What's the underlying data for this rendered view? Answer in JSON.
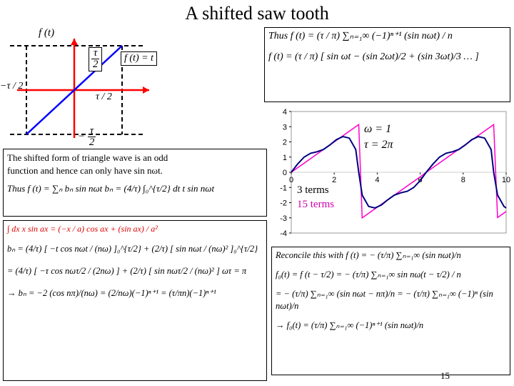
{
  "title": "A shifted saw tooth",
  "sawtooth": {
    "label_ft": "f (t)",
    "label_tau2_top": "τ / 2",
    "label_mtau2": "−τ / 2",
    "label_tau2_right": "τ / 2",
    "label_mtau2_bot": "− τ / 2",
    "label_ft_eq_t": "f (t) = t",
    "axis_color": "#ff0000",
    "line_color": "#0000ff",
    "dash_color": "#000000"
  },
  "top_right_box": {
    "line1": "Thus  f (t) = (τ / π) ∑ₙ₌₁∞ (−1)ⁿ⁺¹ (sin nωt) / n",
    "line2": "f (t) = (τ / π) [ sin ωt − (sin 2ωt)/2 + (sin 3ωt)/3 … ]"
  },
  "chart": {
    "type": "line",
    "xlim": [
      0,
      10
    ],
    "ylim": [
      -4,
      4
    ],
    "xticks": [
      0,
      2,
      4,
      6,
      8,
      10
    ],
    "yticks": [
      -4,
      -3,
      -2,
      -1,
      0,
      1,
      2,
      3,
      4
    ],
    "series": [
      {
        "name": "15 terms",
        "color": "#ff00cc",
        "width": 1.5,
        "xs": [
          0,
          0.2,
          0.4,
          0.6,
          0.8,
          1.0,
          1.2,
          1.4,
          1.6,
          1.8,
          2.0,
          2.2,
          2.4,
          2.6,
          2.8,
          3.0,
          3.14,
          3.3,
          3.5,
          3.7,
          3.9,
          4.1,
          4.3,
          4.5,
          4.7,
          4.9,
          5.1,
          5.3,
          5.5,
          5.7,
          5.9,
          6.1,
          6.28,
          6.5,
          6.7,
          6.9,
          7.1,
          7.3,
          7.5,
          7.7,
          7.9,
          8.1,
          8.3,
          8.5,
          8.7,
          8.9,
          9.1,
          9.3,
          9.42,
          9.6,
          9.8,
          10.0
        ],
        "ys": [
          0,
          0.2,
          0.4,
          0.6,
          0.8,
          1.0,
          1.2,
          1.4,
          1.6,
          1.8,
          2.0,
          2.2,
          2.4,
          2.6,
          2.8,
          3.0,
          3.14,
          -3.0,
          -2.8,
          -2.6,
          -2.4,
          -2.2,
          -2.0,
          -1.8,
          -1.6,
          -1.4,
          -1.2,
          -1.0,
          -0.8,
          -0.6,
          -0.4,
          -0.2,
          0,
          0.22,
          0.42,
          0.62,
          0.82,
          1.02,
          1.22,
          1.42,
          1.62,
          1.82,
          2.02,
          2.22,
          2.42,
          2.62,
          2.82,
          3.02,
          3.14,
          -2.98,
          -2.78,
          -2.58
        ]
      },
      {
        "name": "3 terms",
        "color": "#000080",
        "width": 2,
        "xs": [
          0,
          0.3,
          0.6,
          0.9,
          1.2,
          1.5,
          1.8,
          2.1,
          2.4,
          2.7,
          3.0,
          3.14,
          3.3,
          3.6,
          3.9,
          4.2,
          4.5,
          4.8,
          5.1,
          5.4,
          5.7,
          6.0,
          6.28,
          6.6,
          6.9,
          7.2,
          7.5,
          7.8,
          8.1,
          8.4,
          8.7,
          9.0,
          9.3,
          9.42,
          9.6,
          9.9,
          10.0
        ],
        "ys": [
          0,
          0.55,
          1.0,
          1.25,
          1.35,
          1.5,
          1.8,
          2.15,
          2.35,
          2.25,
          1.5,
          0,
          -1.5,
          -2.25,
          -2.35,
          -2.15,
          -1.8,
          -1.5,
          -1.35,
          -1.25,
          -1.0,
          -0.55,
          0,
          0.55,
          1.0,
          1.25,
          1.35,
          1.5,
          1.8,
          2.15,
          2.35,
          2.25,
          1.5,
          0,
          -1.5,
          -2.25,
          -2.35
        ]
      }
    ],
    "omega_label": "ω = 1",
    "tau_label": "τ = 2π",
    "legend_3": "3 terms",
    "legend_15": "15 terms",
    "tick_fontsize": 11
  },
  "mid_left_box": {
    "line1": "The shifted form of triangle wave is an odd",
    "line2": "function and hence can only have sin nωt.",
    "line3": "Thus  f (t) = ∑ₙ bₙ sin nωt     bₙ = (4/τ) ∫₀^{τ/2} dt  t sin nωt"
  },
  "bottom_left_box": {
    "line1": "∫ dx x sin ax = (−x / a) cos ax + (sin ax) / a²",
    "line2": "bₙ = (4/τ) [ −t cos nωt / (nω) ]₀^{τ/2} + (2/τ) [ sin nωt / (nω)² ]₀^{τ/2}",
    "line3": "= (4/τ) [ −τ cos nωτ/2 / (2nω) ] + (2/τ) [ sin nωτ/2 / (nω)² ]     ωτ = π",
    "line4": "→ bₙ = −2 (cos nπ)/(nω) = (2/nω)(−1)ⁿ⁺¹ = (τ/πn)(−1)ⁿ⁺¹"
  },
  "bottom_right_box": {
    "line1": "Reconcile this with  f (t) = − (τ/π) ∑ₙ₌₁∞ (sin nωt)/n",
    "line2": "f₀(t) = f (t − τ/2) = − (τ/π) ∑ₙ₌₁∞ sin nω(t − τ/2) / n",
    "line3": "= − (τ/π) ∑ₙ₌₁∞ (sin nωt − nπ)/n = − (τ/π) ∑ₙ₌₁∞ (−1)ⁿ (sin nωt)/n",
    "line4": "→ f₀(t) = (τ/π) ∑ₙ₌₁∞ (−1)ⁿ⁺¹ (sin nωt)/n"
  },
  "page_number": "15"
}
